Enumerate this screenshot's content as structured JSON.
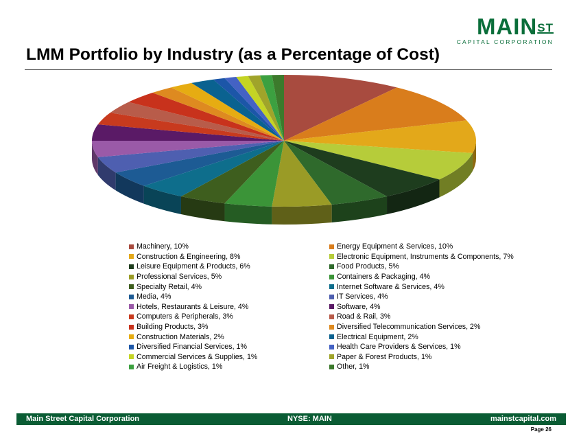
{
  "header": {
    "logo_main": "MAIN",
    "logo_st": "ST",
    "logo_sub": "CAPITAL CORPORATION",
    "logo_color": "#0a6e3a",
    "title": "LMM Portfolio by Industry (as a Percentage of Cost)"
  },
  "chart_data": {
    "type": "pie",
    "style": "3d",
    "unit": "%",
    "legend_placement": "bottom",
    "slices": [
      {
        "label": "Machinery, 10%",
        "name": "Machinery",
        "value": 10,
        "color": "#a84b3f"
      },
      {
        "label": "Energy Equipment & Services, 10%",
        "name": "Energy Equipment & Services",
        "value": 10,
        "color": "#d97d1c"
      },
      {
        "label": "Construction & Engineering, 8%",
        "name": "Construction & Engineering",
        "value": 8,
        "color": "#e3a81a"
      },
      {
        "label": "Electronic Equipment, Instruments & Components, 7%",
        "name": "Electronic Equipment, Instruments & Components",
        "value": 7,
        "color": "#b6cc3a"
      },
      {
        "label": "Leisure Equipment & Products, 6%",
        "name": "Leisure Equipment & Products",
        "value": 6,
        "color": "#1e3d1e"
      },
      {
        "label": "Food Products, 5%",
        "name": "Food Products",
        "value": 5,
        "color": "#2f6a2c"
      },
      {
        "label": "Professional Services, 5%",
        "name": "Professional Services",
        "value": 5,
        "color": "#9a9b26"
      },
      {
        "label": "Containers & Packaging, 4%",
        "name": "Containers & Packaging",
        "value": 4,
        "color": "#3b9438"
      },
      {
        "label": "Specialty Retail, 4%",
        "name": "Specialty Retail",
        "value": 4,
        "color": "#3e5e1e"
      },
      {
        "label": "Internet Software & Services, 4%",
        "name": "Internet Software & Services",
        "value": 4,
        "color": "#0e6e8c"
      },
      {
        "label": "Media, 4%",
        "name": "Media",
        "value": 4,
        "color": "#1d5b94"
      },
      {
        "label": "IT Services, 4%",
        "name": "IT Services",
        "value": 4,
        "color": "#4e5fb0"
      },
      {
        "label": "Hotels, Restaurants & Leisure, 4%",
        "name": "Hotels, Restaurants & Leisure",
        "value": 4,
        "color": "#9a5aa8"
      },
      {
        "label": "Software, 4%",
        "name": "Software",
        "value": 4,
        "color": "#5a1a66"
      },
      {
        "label": "Computers & Peripherals, 3%",
        "name": "Computers & Peripherals",
        "value": 3,
        "color": "#c83a1e"
      },
      {
        "label": "Road & Rail, 3%",
        "name": "Road & Rail",
        "value": 3,
        "color": "#b85c4a"
      },
      {
        "label": "Building Products, 3%",
        "name": "Building Products",
        "value": 3,
        "color": "#c8321c"
      },
      {
        "label": "Diversified Telecommunication Services, 2%",
        "name": "Diversified Telecommunication Services",
        "value": 2,
        "color": "#de8a20"
      },
      {
        "label": "Construction Materials, 2%",
        "name": "Construction Materials",
        "value": 2,
        "color": "#e6ac12"
      },
      {
        "label": "Electrical Equipment, 2%",
        "name": "Electrical Equipment",
        "value": 2,
        "color": "#0a6290"
      },
      {
        "label": "Diversified Financial Services, 1%",
        "name": "Diversified Financial Services",
        "value": 1,
        "color": "#1c56a8"
      },
      {
        "label": "Health Care Providers & Services, 1%",
        "name": "Health Care Providers & Services",
        "value": 1,
        "color": "#4462c4"
      },
      {
        "label": "Commercial Services & Supplies, 1%",
        "name": "Commercial Services & Supplies",
        "value": 1,
        "color": "#c4d424"
      },
      {
        "label": "Paper & Forest Products, 1%",
        "name": "Paper & Forest Products",
        "value": 1,
        "color": "#a0a42a"
      },
      {
        "label": "Air Freight & Logistics, 1%",
        "name": "Air Freight & Logistics",
        "value": 1,
        "color": "#3ca040"
      },
      {
        "label": "Other, 1%",
        "name": "Other",
        "value": 1,
        "color": "#3c7a2c"
      }
    ]
  },
  "footer": {
    "company": "Main Street Capital Corporation",
    "ticker": "NYSE: MAIN",
    "website": "mainstcapital.com",
    "page": "Page  26",
    "bar_color": "#0a5c34"
  }
}
